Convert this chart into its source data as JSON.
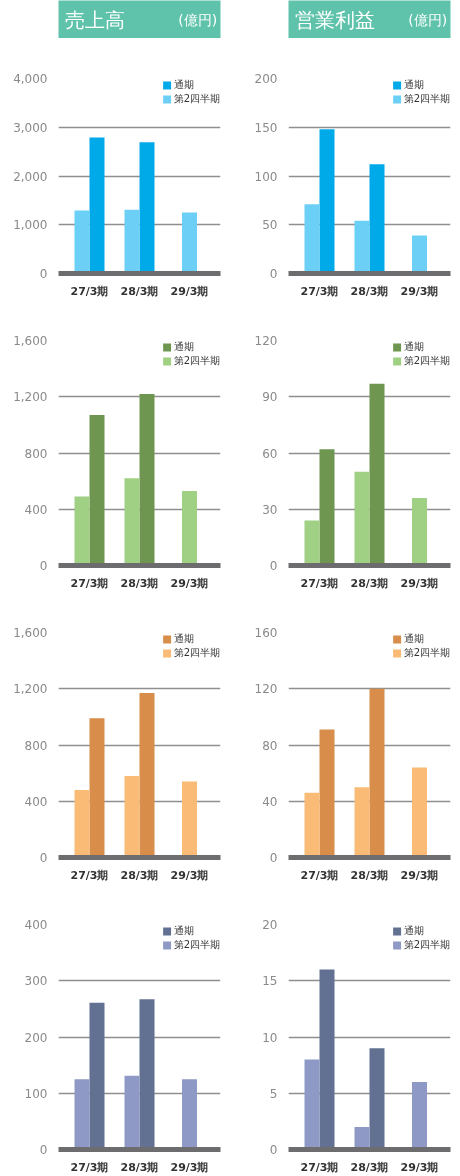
{
  "chart_data": [
    {
      "type": "bar",
      "title": "売上高",
      "subtitle": "(億円)",
      "categories": [
        "27/3期",
        "28/3期",
        "29/3期"
      ],
      "ylim": [
        0,
        4000
      ],
      "yticks": [
        0,
        {
          "value": 1000,
          "label": "1,000"
        },
        {
          "value": 2000,
          "label": "2,000"
        },
        {
          "value": 3000,
          "label": "3,000"
        },
        {
          "value": 4000,
          "label": "4,000"
        }
      ],
      "grid": "y",
      "legend": "top right",
      "series": [
        {
          "name": "通期",
          "color": "#00a9e8",
          "values": [
            2790,
            2690,
            null
          ]
        },
        {
          "name": "第2四半期",
          "color": "#6ccff6",
          "values": [
            1290,
            1310,
            1250
          ]
        }
      ]
    },
    {
      "type": "bar",
      "title": "営業利益",
      "subtitle": "(億円)",
      "categories": [
        "27/3期",
        "28/3期",
        "29/3期"
      ],
      "ylim": [
        0,
        200
      ],
      "yticks": [
        0,
        50,
        100,
        150,
        200
      ],
      "grid": "y",
      "legend": "top right",
      "series": [
        {
          "name": "通期",
          "color": "#00a9e8",
          "values": [
            148,
            112,
            null
          ]
        },
        {
          "name": "第2四半期",
          "color": "#6ccff6",
          "values": [
            71,
            54,
            39
          ]
        }
      ]
    },
    {
      "type": "bar",
      "categories": [
        "27/3期",
        "28/3期",
        "29/3期"
      ],
      "ylim": [
        0,
        1600
      ],
      "yticks": [
        0,
        400,
        800,
        {
          "value": 1200,
          "label": "1,200"
        },
        {
          "value": 1600,
          "label": "1,600"
        }
      ],
      "grid": "y",
      "legend": "top right",
      "series": [
        {
          "name": "通期",
          "color": "#6f9650",
          "values": [
            1070,
            1220,
            null
          ]
        },
        {
          "name": "第2四半期",
          "color": "#a0d083",
          "values": [
            490,
            620,
            530
          ]
        }
      ]
    },
    {
      "type": "bar",
      "categories": [
        "27/3期",
        "28/3期",
        "29/3期"
      ],
      "ylim": [
        0,
        120
      ],
      "yticks": [
        0,
        30,
        60,
        90,
        120
      ],
      "grid": "y",
      "legend": "top right",
      "series": [
        {
          "name": "通期",
          "color": "#6f9650",
          "values": [
            62,
            97,
            null
          ]
        },
        {
          "name": "第2四半期",
          "color": "#a0d083",
          "values": [
            24,
            50,
            36
          ]
        }
      ]
    },
    {
      "type": "bar",
      "categories": [
        "27/3期",
        "28/3期",
        "29/3期"
      ],
      "ylim": [
        0,
        1600
      ],
      "yticks": [
        0,
        400,
        800,
        {
          "value": 1200,
          "label": "1,200"
        },
        {
          "value": 1600,
          "label": "1,600"
        }
      ],
      "grid": "y",
      "legend": "top right",
      "series": [
        {
          "name": "通期",
          "color": "#d88d4a",
          "values": [
            990,
            1170,
            null
          ]
        },
        {
          "name": "第2四半期",
          "color": "#f9bb75",
          "values": [
            480,
            580,
            540
          ]
        }
      ]
    },
    {
      "type": "bar",
      "categories": [
        "27/3期",
        "28/3期",
        "29/3期"
      ],
      "ylim": [
        0,
        160
      ],
      "yticks": [
        0,
        40,
        80,
        120,
        160
      ],
      "grid": "y",
      "legend": "top right",
      "series": [
        {
          "name": "通期",
          "color": "#d88d4a",
          "values": [
            91,
            120,
            null
          ]
        },
        {
          "name": "第2四半期",
          "color": "#f9bb75",
          "values": [
            46,
            50,
            64
          ]
        }
      ]
    },
    {
      "type": "bar",
      "categories": [
        "27/3期",
        "28/3期",
        "29/3期"
      ],
      "ylim": [
        0,
        400
      ],
      "yticks": [
        0,
        100,
        200,
        300,
        400
      ],
      "grid": "y",
      "legend": "top right",
      "series": [
        {
          "name": "通期",
          "color": "#627192",
          "values": [
            261,
            267,
            null
          ]
        },
        {
          "name": "第2四半期",
          "color": "#8e99c5",
          "values": [
            125,
            131,
            125
          ]
        }
      ]
    },
    {
      "type": "bar",
      "categories": [
        "27/3期",
        "28/3期",
        "29/3期"
      ],
      "ylim": [
        0,
        20
      ],
      "yticks": [
        0,
        5,
        10,
        15,
        20
      ],
      "grid": "y",
      "legend": "top right",
      "series": [
        {
          "name": "通期",
          "color": "#627192",
          "values": [
            16,
            9,
            null
          ]
        },
        {
          "name": "第2四半期",
          "color": "#8e99c5",
          "values": [
            8,
            2,
            6
          ]
        }
      ]
    }
  ]
}
